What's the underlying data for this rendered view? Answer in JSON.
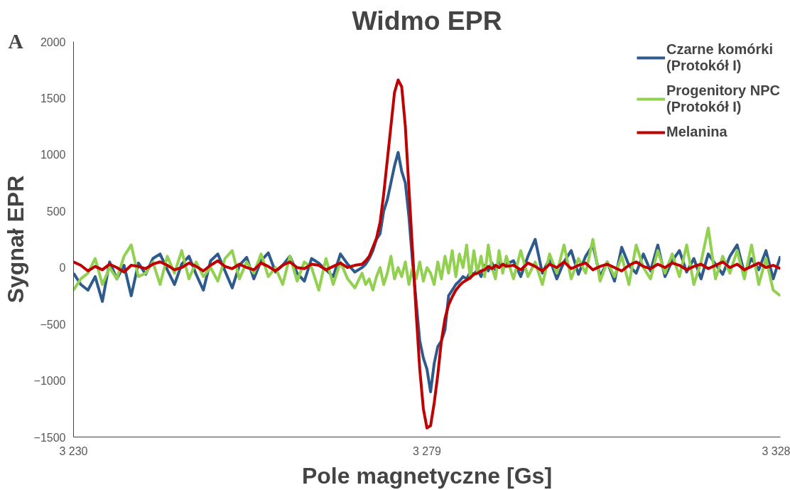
{
  "chart_data": {
    "type": "line",
    "title": "Widmo EPR",
    "xlabel": "Pole magnetyczne [Gs]",
    "ylabel": "Sygnał EPR",
    "annotations": [
      "A"
    ],
    "x": [
      3230,
      3231,
      3232,
      3233,
      3234,
      3235,
      3236,
      3237,
      3238,
      3239,
      3240,
      3241,
      3242,
      3243,
      3244,
      3245,
      3246,
      3247,
      3248,
      3249,
      3250,
      3251,
      3252,
      3253,
      3254,
      3255,
      3256,
      3257,
      3258,
      3259,
      3260,
      3261,
      3262,
      3263,
      3264,
      3265,
      3266,
      3267,
      3268,
      3269,
      3270,
      3270.5,
      3271,
      3271.5,
      3272,
      3272.5,
      3273,
      3273.5,
      3274,
      3274.5,
      3275,
      3275.5,
      3276,
      3276.5,
      3277,
      3277.5,
      3278,
      3278.5,
      3279,
      3279.5,
      3280,
      3280.5,
      3281,
      3281.5,
      3282,
      3282.5,
      3283,
      3283.5,
      3284,
      3284.5,
      3285,
      3285.5,
      3286,
      3286.5,
      3287,
      3287.5,
      3288,
      3288.5,
      3289,
      3289.5,
      3290,
      3291,
      3292,
      3293,
      3294,
      3295,
      3296,
      3297,
      3298,
      3299,
      3300,
      3301,
      3302,
      3303,
      3304,
      3305,
      3306,
      3307,
      3308,
      3309,
      3310,
      3311,
      3312,
      3313,
      3314,
      3315,
      3316,
      3317,
      3318,
      3319,
      3320,
      3321,
      3322,
      3323,
      3324,
      3325,
      3326,
      3327,
      3328
    ],
    "series": [
      {
        "name": "Czarne komórki (Protokół I)",
        "color": "#2e5a8c",
        "values": [
          -50,
          -150,
          -200,
          -80,
          -300,
          50,
          -100,
          20,
          -250,
          40,
          -60,
          80,
          120,
          -20,
          -150,
          30,
          100,
          -60,
          -200,
          60,
          120,
          -30,
          -180,
          20,
          90,
          -100,
          60,
          130,
          -40,
          20,
          100,
          -50,
          -120,
          80,
          40,
          -20,
          -80,
          120,
          30,
          -40,
          0,
          30,
          80,
          150,
          250,
          300,
          500,
          600,
          750,
          900,
          1020,
          850,
          750,
          450,
          50,
          -300,
          -650,
          -800,
          -900,
          -1100,
          -850,
          -700,
          -650,
          -550,
          -250,
          -200,
          -150,
          -120,
          -80,
          -100,
          -40,
          -60,
          -20,
          -80,
          20,
          -30,
          40,
          -20,
          60,
          -10,
          30,
          60,
          -80,
          100,
          250,
          -50,
          80,
          -100,
          50,
          150,
          -60,
          100,
          200,
          -80,
          50,
          -120,
          180,
          20,
          -50,
          120,
          -30,
          200,
          -80,
          60,
          150,
          -40,
          80,
          -100,
          120,
          30,
          -60,
          100,
          200,
          -50,
          80,
          -20,
          150,
          -100,
          100
        ]
      },
      {
        "name": "Progenitory NPC (Protokół I)",
        "color": "#92d050",
        "values": [
          -200,
          -100,
          -50,
          80,
          -150,
          0,
          -100,
          100,
          200,
          -80,
          -50,
          50,
          -150,
          100,
          -50,
          150,
          -100,
          50,
          -80,
          0,
          -120,
          80,
          150,
          -100,
          50,
          -50,
          120,
          -80,
          0,
          -150,
          100,
          -120,
          50,
          0,
          -200,
          80,
          -150,
          50,
          -100,
          -180,
          -50,
          -150,
          -100,
          -200,
          -80,
          0,
          -150,
          -50,
          100,
          -100,
          0,
          -80,
          50,
          -150,
          0,
          -100,
          50,
          -120,
          0,
          -50,
          -150,
          50,
          -100,
          100,
          -50,
          150,
          -80,
          120,
          0,
          200,
          -100,
          150,
          -50,
          100,
          -80,
          200,
          0,
          -100,
          150,
          -50,
          100,
          -100,
          150,
          -80,
          50,
          -150,
          120,
          -50,
          200,
          -100,
          80,
          -50,
          250,
          -120,
          50,
          -80,
          100,
          -150,
          200,
          0,
          -100,
          150,
          -50,
          120,
          -80,
          200,
          -150,
          50,
          350,
          -100,
          100,
          -50,
          150,
          -100,
          200,
          -150,
          80,
          -200,
          -250
        ]
      },
      {
        "name": "Melanina",
        "color": "#c00000",
        "values": [
          50,
          20,
          -30,
          10,
          -20,
          30,
          0,
          -40,
          20,
          10,
          -10,
          30,
          50,
          20,
          -20,
          0,
          40,
          10,
          -30,
          20,
          60,
          10,
          -10,
          30,
          0,
          -20,
          40,
          10,
          -30,
          20,
          50,
          0,
          -10,
          30,
          20,
          -20,
          10,
          40,
          0,
          20,
          30,
          60,
          100,
          180,
          260,
          400,
          650,
          950,
          1250,
          1550,
          1660,
          1600,
          1250,
          700,
          150,
          -400,
          -900,
          -1250,
          -1420,
          -1400,
          -1200,
          -950,
          -650,
          -450,
          -330,
          -260,
          -200,
          -160,
          -130,
          -110,
          -90,
          -60,
          -50,
          -30,
          -20,
          10,
          -10,
          20,
          0,
          30,
          10,
          20,
          -20,
          40,
          10,
          -30,
          30,
          0,
          50,
          -10,
          20,
          40,
          -20,
          10,
          30,
          0,
          -30,
          20,
          50,
          10,
          -10,
          30,
          0,
          40,
          20,
          -20,
          10,
          30,
          -10,
          20,
          50,
          0,
          30,
          -20,
          10,
          40,
          0,
          20,
          -10
        ]
      }
    ],
    "xlim": [
      3230,
      3328
    ],
    "xticks": [
      {
        "value": 3230,
        "label": "3 230"
      },
      {
        "value": 3279,
        "label": "3 279"
      },
      {
        "value": 3328,
        "label": "3 328"
      }
    ],
    "ylim": [
      -1500,
      2000
    ],
    "yticks": [
      -1500,
      -1000,
      -500,
      0,
      500,
      1000,
      1500,
      2000
    ],
    "grid": false,
    "legend": "top right",
    "marker": "none",
    "line_style": "solid"
  }
}
